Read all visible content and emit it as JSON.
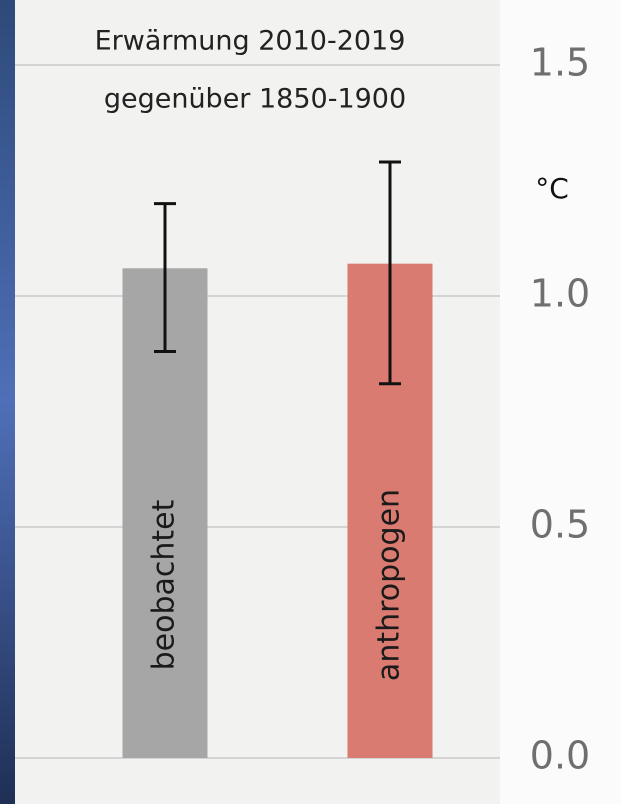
{
  "chart_data": {
    "type": "bar",
    "title": "Erwärmung 2010-2019",
    "subtitle": "gegenüber 1850-1900",
    "unit": "°C",
    "categories": [
      "beobachtet",
      "anthropogen"
    ],
    "values": [
      1.06,
      1.07
    ],
    "err_low": [
      0.88,
      0.81
    ],
    "err_high": [
      1.2,
      1.29
    ],
    "colors": [
      "#a6a6a6",
      "#d97b71"
    ],
    "ylim": [
      0,
      1.5
    ],
    "yticks": [
      {
        "value": 0,
        "label": "0.0"
      },
      0.5,
      {
        "value": 1,
        "label": "1.0"
      },
      1.5
    ],
    "grid": true
  }
}
